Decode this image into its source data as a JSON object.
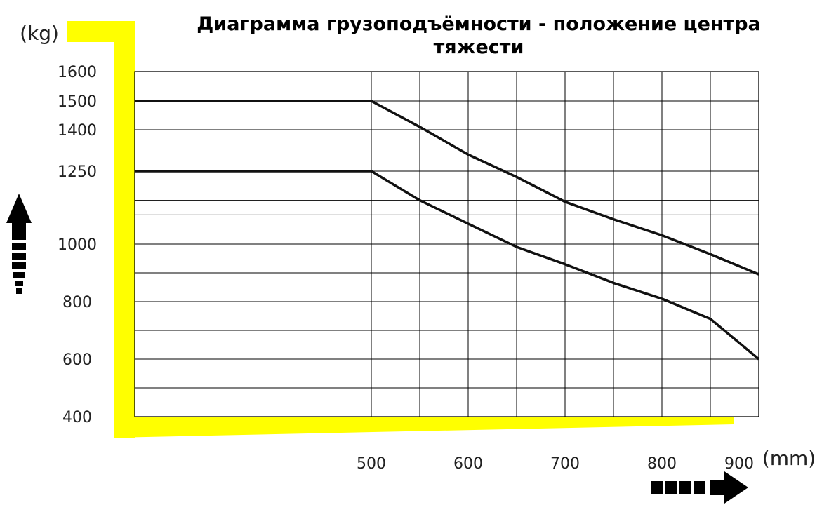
{
  "chart_data": {
    "type": "line",
    "title": "Диаграмма грузоподъёмности - положение центра тяжести",
    "title_lines": [
      "Диаграмма грузоподъёмности - положение центра",
      "тяжести"
    ],
    "ylabel": "(kg)",
    "xlabel": "(mm)",
    "y_ticks": [
      400,
      600,
      800,
      1000,
      1250,
      1400,
      1500,
      1600
    ],
    "x_ticks": [
      500,
      600,
      700,
      800,
      900
    ],
    "grid": true,
    "series": [
      {
        "values": [
          [
            0,
            1500
          ],
          [
            500,
            1500
          ],
          [
            550,
            1410
          ],
          [
            600,
            1310
          ],
          [
            650,
            1230
          ],
          [
            700,
            1145
          ],
          [
            750,
            1085
          ],
          [
            800,
            1030
          ],
          [
            850,
            965
          ],
          [
            900,
            895
          ]
        ]
      },
      {
        "values": [
          [
            0,
            1250
          ],
          [
            500,
            1250
          ],
          [
            550,
            1150
          ],
          [
            600,
            1070
          ],
          [
            650,
            990
          ],
          [
            700,
            930
          ],
          [
            750,
            865
          ],
          [
            800,
            810
          ],
          [
            850,
            740
          ],
          [
            900,
            600
          ]
        ]
      }
    ],
    "highlight_color": "#ffff00",
    "line_color": "#111111"
  }
}
